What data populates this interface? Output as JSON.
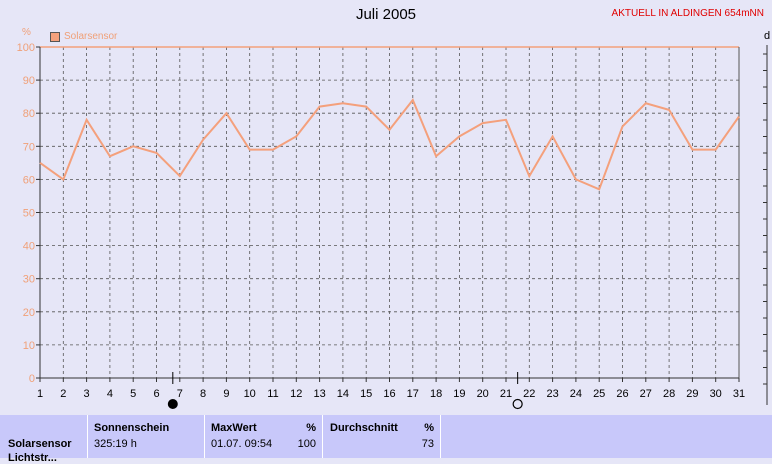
{
  "header": {
    "title": "Juli 2005",
    "station": "AKTUELL IN ALDINGEN 654mNN",
    "unit": "%",
    "right_cut_text": "d"
  },
  "colors": {
    "series": "#f4a07c",
    "background": "#e6e6f7",
    "grid": "#555555",
    "station": "#e00000",
    "table": "#c8c8fa"
  },
  "chart_data": {
    "type": "line",
    "x": [
      1,
      2,
      3,
      4,
      5,
      6,
      7,
      8,
      9,
      10,
      11,
      12,
      13,
      14,
      15,
      16,
      17,
      18,
      19,
      20,
      21,
      22,
      23,
      24,
      25,
      26,
      27,
      28,
      29,
      30,
      31
    ],
    "series": [
      {
        "name": "Solarsensor",
        "values": [
          65,
          60,
          78,
          67,
          70,
          68,
          61,
          72,
          80,
          69,
          69,
          73,
          82,
          83,
          82,
          75,
          84,
          67,
          73,
          77,
          78,
          61,
          73,
          60,
          57,
          76,
          83,
          81,
          69,
          69,
          79
        ]
      }
    ],
    "xlim": [
      1,
      31
    ],
    "ylim": [
      0,
      100
    ],
    "yticks": [
      0,
      10,
      20,
      30,
      40,
      50,
      60,
      70,
      80,
      90,
      100
    ],
    "ylabel": "%",
    "grid": true,
    "legend": "top-left",
    "moon_phases": [
      {
        "day": 6.7,
        "phase": "new-moon"
      },
      {
        "day": 21.5,
        "phase": "full-moon"
      }
    ]
  },
  "table": {
    "row_label_1": "Solarsensor",
    "row_label_2": "Lichtstr...",
    "sonnenschein_label": "Sonnenschein",
    "sonnenschein_value": "325:19 h",
    "maxwert_label": "MaxWert",
    "maxwert_unit": "%",
    "maxwert_time": "01.07.  09:54",
    "maxwert_value": "100",
    "durchschnitt_label": "Durchschnitt",
    "durchschnitt_unit": "%",
    "durchschnitt_value": "73"
  }
}
